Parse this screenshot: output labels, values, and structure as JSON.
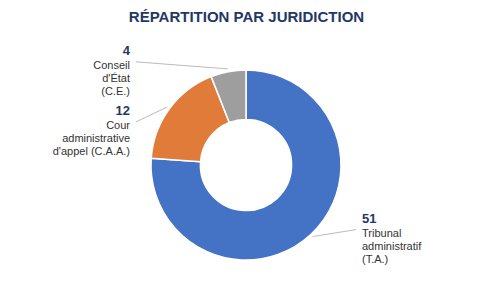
{
  "chart_data": {
    "type": "donut",
    "title": "RÉPARTITION PAR JURIDICTION",
    "categories": [
      "Tribunal\nadministratif\n(T.A.)",
      "Cour\nadministrative\nd'appel (C.A.A.)",
      "Conseil\nd'État\n(C.E.)"
    ],
    "values": [
      51,
      12,
      4
    ],
    "colors": [
      "#4472C4",
      "#E07B39",
      "#9E9E9E"
    ],
    "data_labels": true
  }
}
